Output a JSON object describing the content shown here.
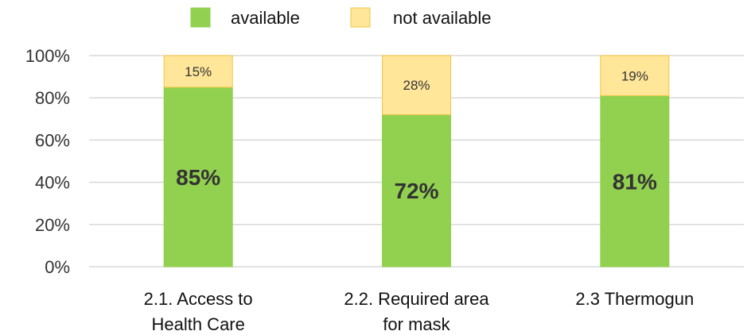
{
  "chart_data": {
    "type": "bar",
    "stacked": true,
    "categories": [
      [
        "2.1. Access to",
        "Health Care"
      ],
      [
        "2.2. Required area",
        "for mask"
      ],
      [
        "2.3 Thermogun"
      ]
    ],
    "series": [
      {
        "name": "available",
        "values": [
          85,
          72,
          81
        ],
        "labels": [
          "85%",
          "72%",
          "81%"
        ],
        "color": "#92d050",
        "border": "#92d050"
      },
      {
        "name": "not available",
        "values": [
          15,
          28,
          19
        ],
        "labels": [
          "15%",
          "28%",
          "19%"
        ],
        "color": "#ffe699",
        "border": "#f3c544"
      }
    ],
    "yticks": [
      "0%",
      "20%",
      "40%",
      "60%",
      "80%",
      "100%"
    ],
    "ylim": [
      0,
      100
    ],
    "grid": true,
    "legend_position": "top",
    "gridline_color": "#d9d9d9"
  }
}
